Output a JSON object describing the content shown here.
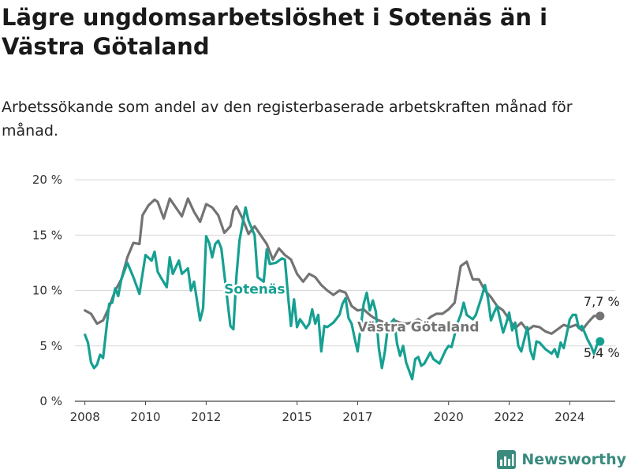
{
  "title": "Lägre ungdomsarbetslöshet i Sotenäs än i Västra Götaland",
  "subtitle": "Arbetssökande som andel av den registerbaserade arbetskraften månad för månad.",
  "brand": "Newsworthy",
  "colors": {
    "sotenas": "#16a092",
    "vastra": "#737373",
    "grid": "#d9d9d9",
    "axis": "#444444",
    "brand": "#3a8a7e"
  },
  "chart_data": {
    "type": "line",
    "title": "Lägre ungdomsarbetslöshet i Sotenäs än i Västra Götaland",
    "subtitle": "Arbetssökande som andel av den registerbaserade arbetskraften månad för månad.",
    "xlabel": "",
    "ylabel": "",
    "x_unit": "year",
    "xlim": [
      2007.67,
      2025.5
    ],
    "ylim": [
      0,
      20
    ],
    "y_ticks": [
      0,
      5,
      10,
      15,
      20
    ],
    "y_tick_labels": [
      "0 %",
      "5 %",
      "10 %",
      "15 %",
      "20 %"
    ],
    "x_ticks": [
      2008,
      2010,
      2012,
      2015,
      2017,
      2020,
      2022,
      2024
    ],
    "x_tick_labels": [
      "2008",
      "2010",
      "2012",
      "2015",
      "2017",
      "2020",
      "2022",
      "2024"
    ],
    "grid": "horizontal",
    "legend": "none",
    "series": [
      {
        "name": "Västra Götaland",
        "color": "#737373",
        "end_label": "7,7 %",
        "points": [
          [
            2008.0,
            8.2
          ],
          [
            2008.2,
            7.9
          ],
          [
            2008.4,
            7.0
          ],
          [
            2008.6,
            7.3
          ],
          [
            2008.8,
            8.5
          ],
          [
            2009.0,
            10.0
          ],
          [
            2009.2,
            11.0
          ],
          [
            2009.4,
            13.0
          ],
          [
            2009.6,
            14.3
          ],
          [
            2009.8,
            14.2
          ],
          [
            2009.9,
            16.8
          ],
          [
            2010.1,
            17.7
          ],
          [
            2010.3,
            18.2
          ],
          [
            2010.4,
            18.0
          ],
          [
            2010.6,
            16.5
          ],
          [
            2010.8,
            18.3
          ],
          [
            2011.0,
            17.5
          ],
          [
            2011.2,
            16.7
          ],
          [
            2011.4,
            18.3
          ],
          [
            2011.6,
            17.1
          ],
          [
            2011.8,
            16.2
          ],
          [
            2012.0,
            17.8
          ],
          [
            2012.2,
            17.5
          ],
          [
            2012.4,
            16.8
          ],
          [
            2012.6,
            15.2
          ],
          [
            2012.8,
            15.8
          ],
          [
            2012.9,
            17.2
          ],
          [
            2013.0,
            17.6
          ],
          [
            2013.2,
            16.5
          ],
          [
            2013.4,
            15.1
          ],
          [
            2013.6,
            15.8
          ],
          [
            2013.8,
            15.0
          ],
          [
            2014.0,
            14.2
          ],
          [
            2014.2,
            12.8
          ],
          [
            2014.4,
            13.8
          ],
          [
            2014.6,
            13.2
          ],
          [
            2014.8,
            12.8
          ],
          [
            2015.0,
            11.5
          ],
          [
            2015.2,
            10.8
          ],
          [
            2015.4,
            11.5
          ],
          [
            2015.6,
            11.2
          ],
          [
            2015.8,
            10.5
          ],
          [
            2016.0,
            10.0
          ],
          [
            2016.2,
            9.6
          ],
          [
            2016.4,
            10.0
          ],
          [
            2016.6,
            9.8
          ],
          [
            2016.8,
            8.6
          ],
          [
            2017.0,
            8.2
          ],
          [
            2017.2,
            8.3
          ],
          [
            2017.4,
            7.8
          ],
          [
            2017.6,
            7.4
          ],
          [
            2017.8,
            7.2
          ],
          [
            2018.0,
            6.9
          ],
          [
            2018.2,
            7.3
          ],
          [
            2018.4,
            7.1
          ],
          [
            2018.6,
            7.0
          ],
          [
            2018.8,
            7.1
          ],
          [
            2019.0,
            7.4
          ],
          [
            2019.2,
            7.0
          ],
          [
            2019.4,
            7.6
          ],
          [
            2019.6,
            7.9
          ],
          [
            2019.8,
            7.9
          ],
          [
            2020.0,
            8.3
          ],
          [
            2020.2,
            8.9
          ],
          [
            2020.4,
            12.2
          ],
          [
            2020.6,
            12.6
          ],
          [
            2020.8,
            11.0
          ],
          [
            2021.0,
            11.0
          ],
          [
            2021.2,
            10.0
          ],
          [
            2021.4,
            9.4
          ],
          [
            2021.6,
            8.6
          ],
          [
            2021.8,
            8.2
          ],
          [
            2022.0,
            7.4
          ],
          [
            2022.2,
            6.6
          ],
          [
            2022.4,
            7.1
          ],
          [
            2022.6,
            6.4
          ],
          [
            2022.8,
            6.8
          ],
          [
            2023.0,
            6.7
          ],
          [
            2023.2,
            6.3
          ],
          [
            2023.4,
            6.1
          ],
          [
            2023.6,
            6.5
          ],
          [
            2023.8,
            6.9
          ],
          [
            2024.0,
            6.7
          ],
          [
            2024.2,
            6.9
          ],
          [
            2024.4,
            6.4
          ],
          [
            2024.6,
            7.1
          ],
          [
            2024.8,
            7.7
          ],
          [
            2025.0,
            7.7
          ]
        ]
      },
      {
        "name": "Sotenäs",
        "color": "#16a092",
        "end_label": "5,4 %",
        "points": [
          [
            2008.0,
            6.0
          ],
          [
            2008.1,
            5.3
          ],
          [
            2008.2,
            3.5
          ],
          [
            2008.3,
            3.0
          ],
          [
            2008.4,
            3.3
          ],
          [
            2008.5,
            4.2
          ],
          [
            2008.6,
            3.9
          ],
          [
            2008.8,
            8.8
          ],
          [
            2008.9,
            8.9
          ],
          [
            2009.0,
            10.2
          ],
          [
            2009.1,
            9.5
          ],
          [
            2009.2,
            11.0
          ],
          [
            2009.4,
            12.5
          ],
          [
            2009.6,
            11.2
          ],
          [
            2009.8,
            9.7
          ],
          [
            2009.9,
            11.5
          ],
          [
            2010.0,
            13.2
          ],
          [
            2010.2,
            12.7
          ],
          [
            2010.3,
            13.5
          ],
          [
            2010.4,
            11.7
          ],
          [
            2010.5,
            11.2
          ],
          [
            2010.7,
            10.3
          ],
          [
            2010.8,
            13.0
          ],
          [
            2010.9,
            11.5
          ],
          [
            2011.1,
            12.7
          ],
          [
            2011.2,
            11.5
          ],
          [
            2011.4,
            12.0
          ],
          [
            2011.5,
            10.0
          ],
          [
            2011.6,
            10.8
          ],
          [
            2011.8,
            7.3
          ],
          [
            2011.9,
            8.4
          ],
          [
            2012.0,
            14.9
          ],
          [
            2012.1,
            14.3
          ],
          [
            2012.2,
            13.0
          ],
          [
            2012.3,
            14.2
          ],
          [
            2012.4,
            14.5
          ],
          [
            2012.5,
            13.8
          ],
          [
            2012.6,
            11.5
          ],
          [
            2012.8,
            6.8
          ],
          [
            2012.9,
            6.5
          ],
          [
            2013.0,
            11.3
          ],
          [
            2013.1,
            14.5
          ],
          [
            2013.3,
            17.5
          ],
          [
            2013.4,
            16.3
          ],
          [
            2013.6,
            15.0
          ],
          [
            2013.7,
            11.2
          ],
          [
            2013.9,
            10.8
          ],
          [
            2014.0,
            13.7
          ],
          [
            2014.1,
            12.4
          ],
          [
            2014.3,
            12.5
          ],
          [
            2014.5,
            12.9
          ],
          [
            2014.6,
            12.8
          ],
          [
            2014.7,
            9.6
          ],
          [
            2014.8,
            6.8
          ],
          [
            2014.9,
            9.2
          ],
          [
            2015.0,
            6.7
          ],
          [
            2015.1,
            7.4
          ],
          [
            2015.2,
            7.0
          ],
          [
            2015.3,
            6.6
          ],
          [
            2015.4,
            7.0
          ],
          [
            2015.5,
            8.3
          ],
          [
            2015.6,
            7.0
          ],
          [
            2015.7,
            7.8
          ],
          [
            2015.8,
            4.5
          ],
          [
            2015.9,
            6.8
          ],
          [
            2016.0,
            6.7
          ],
          [
            2016.2,
            7.1
          ],
          [
            2016.4,
            7.8
          ],
          [
            2016.5,
            8.8
          ],
          [
            2016.6,
            9.3
          ],
          [
            2016.7,
            7.5
          ],
          [
            2016.8,
            7.0
          ],
          [
            2016.9,
            5.7
          ],
          [
            2017.0,
            4.5
          ],
          [
            2017.2,
            8.8
          ],
          [
            2017.3,
            9.8
          ],
          [
            2017.4,
            8.2
          ],
          [
            2017.5,
            9.1
          ],
          [
            2017.6,
            8.1
          ],
          [
            2017.7,
            4.8
          ],
          [
            2017.8,
            3.0
          ],
          [
            2017.9,
            4.5
          ],
          [
            2018.0,
            6.8
          ],
          [
            2018.2,
            7.4
          ],
          [
            2018.3,
            5.2
          ],
          [
            2018.4,
            4.1
          ],
          [
            2018.5,
            5.0
          ],
          [
            2018.6,
            3.5
          ],
          [
            2018.8,
            2.0
          ],
          [
            2018.9,
            3.8
          ],
          [
            2019.0,
            4.0
          ],
          [
            2019.1,
            3.2
          ],
          [
            2019.2,
            3.4
          ],
          [
            2019.4,
            4.4
          ],
          [
            2019.5,
            3.8
          ],
          [
            2019.7,
            3.4
          ],
          [
            2019.9,
            4.6
          ],
          [
            2020.0,
            5.0
          ],
          [
            2020.1,
            4.9
          ],
          [
            2020.2,
            6.0
          ],
          [
            2020.3,
            7.1
          ],
          [
            2020.4,
            7.8
          ],
          [
            2020.5,
            8.9
          ],
          [
            2020.6,
            7.8
          ],
          [
            2020.8,
            7.4
          ],
          [
            2020.9,
            7.8
          ],
          [
            2021.1,
            9.5
          ],
          [
            2021.2,
            10.5
          ],
          [
            2021.3,
            9.3
          ],
          [
            2021.4,
            7.3
          ],
          [
            2021.5,
            8.0
          ],
          [
            2021.6,
            8.6
          ],
          [
            2021.8,
            6.2
          ],
          [
            2021.9,
            7.0
          ],
          [
            2022.0,
            8.0
          ],
          [
            2022.1,
            6.4
          ],
          [
            2022.2,
            7.1
          ],
          [
            2022.3,
            5.0
          ],
          [
            2022.4,
            4.5
          ],
          [
            2022.6,
            6.7
          ],
          [
            2022.7,
            4.6
          ],
          [
            2022.8,
            3.8
          ],
          [
            2022.9,
            5.4
          ],
          [
            2023.0,
            5.3
          ],
          [
            2023.2,
            4.7
          ],
          [
            2023.4,
            4.3
          ],
          [
            2023.5,
            4.7
          ],
          [
            2023.6,
            4.0
          ],
          [
            2023.7,
            5.3
          ],
          [
            2023.8,
            4.8
          ],
          [
            2024.0,
            7.4
          ],
          [
            2024.1,
            7.8
          ],
          [
            2024.2,
            7.8
          ],
          [
            2024.3,
            6.6
          ],
          [
            2024.4,
            6.8
          ],
          [
            2024.6,
            5.5
          ],
          [
            2024.7,
            5.0
          ],
          [
            2024.8,
            4.3
          ],
          [
            2024.9,
            5.1
          ],
          [
            2025.0,
            5.4
          ]
        ]
      }
    ],
    "annotations": [
      {
        "text": "Sotenäs",
        "series": "Sotenäs",
        "x": 2013.6,
        "y": 9.7
      },
      {
        "text": "Västra Götaland",
        "series": "Västra Götaland",
        "x": 2019.0,
        "y": 6.3
      }
    ]
  }
}
